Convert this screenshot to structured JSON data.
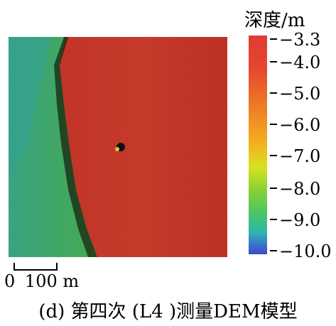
{
  "legend": {
    "title": "深度/m",
    "ticks": [
      "−3.3",
      "−4.0",
      "−5.0",
      "−6.0",
      "−7.0",
      "−8.0",
      "−9.0",
      "−10.0"
    ],
    "colors": {
      "shallow": "#e23a34",
      "mid_orange": "#ee7a26",
      "mid_yellow": "#f3b21e",
      "mid_green": "#46c56a",
      "deep": "#3b4bc6"
    }
  },
  "scale_bar": {
    "start_label": "0",
    "end_label": "100 m"
  },
  "caption": "(d) 第四次 (L4 )测量DEM模型",
  "map": {
    "colors": {
      "red_area": "#d63a2e",
      "green_area": "#4db94d",
      "cyan_area": "#3bb3a3"
    }
  }
}
